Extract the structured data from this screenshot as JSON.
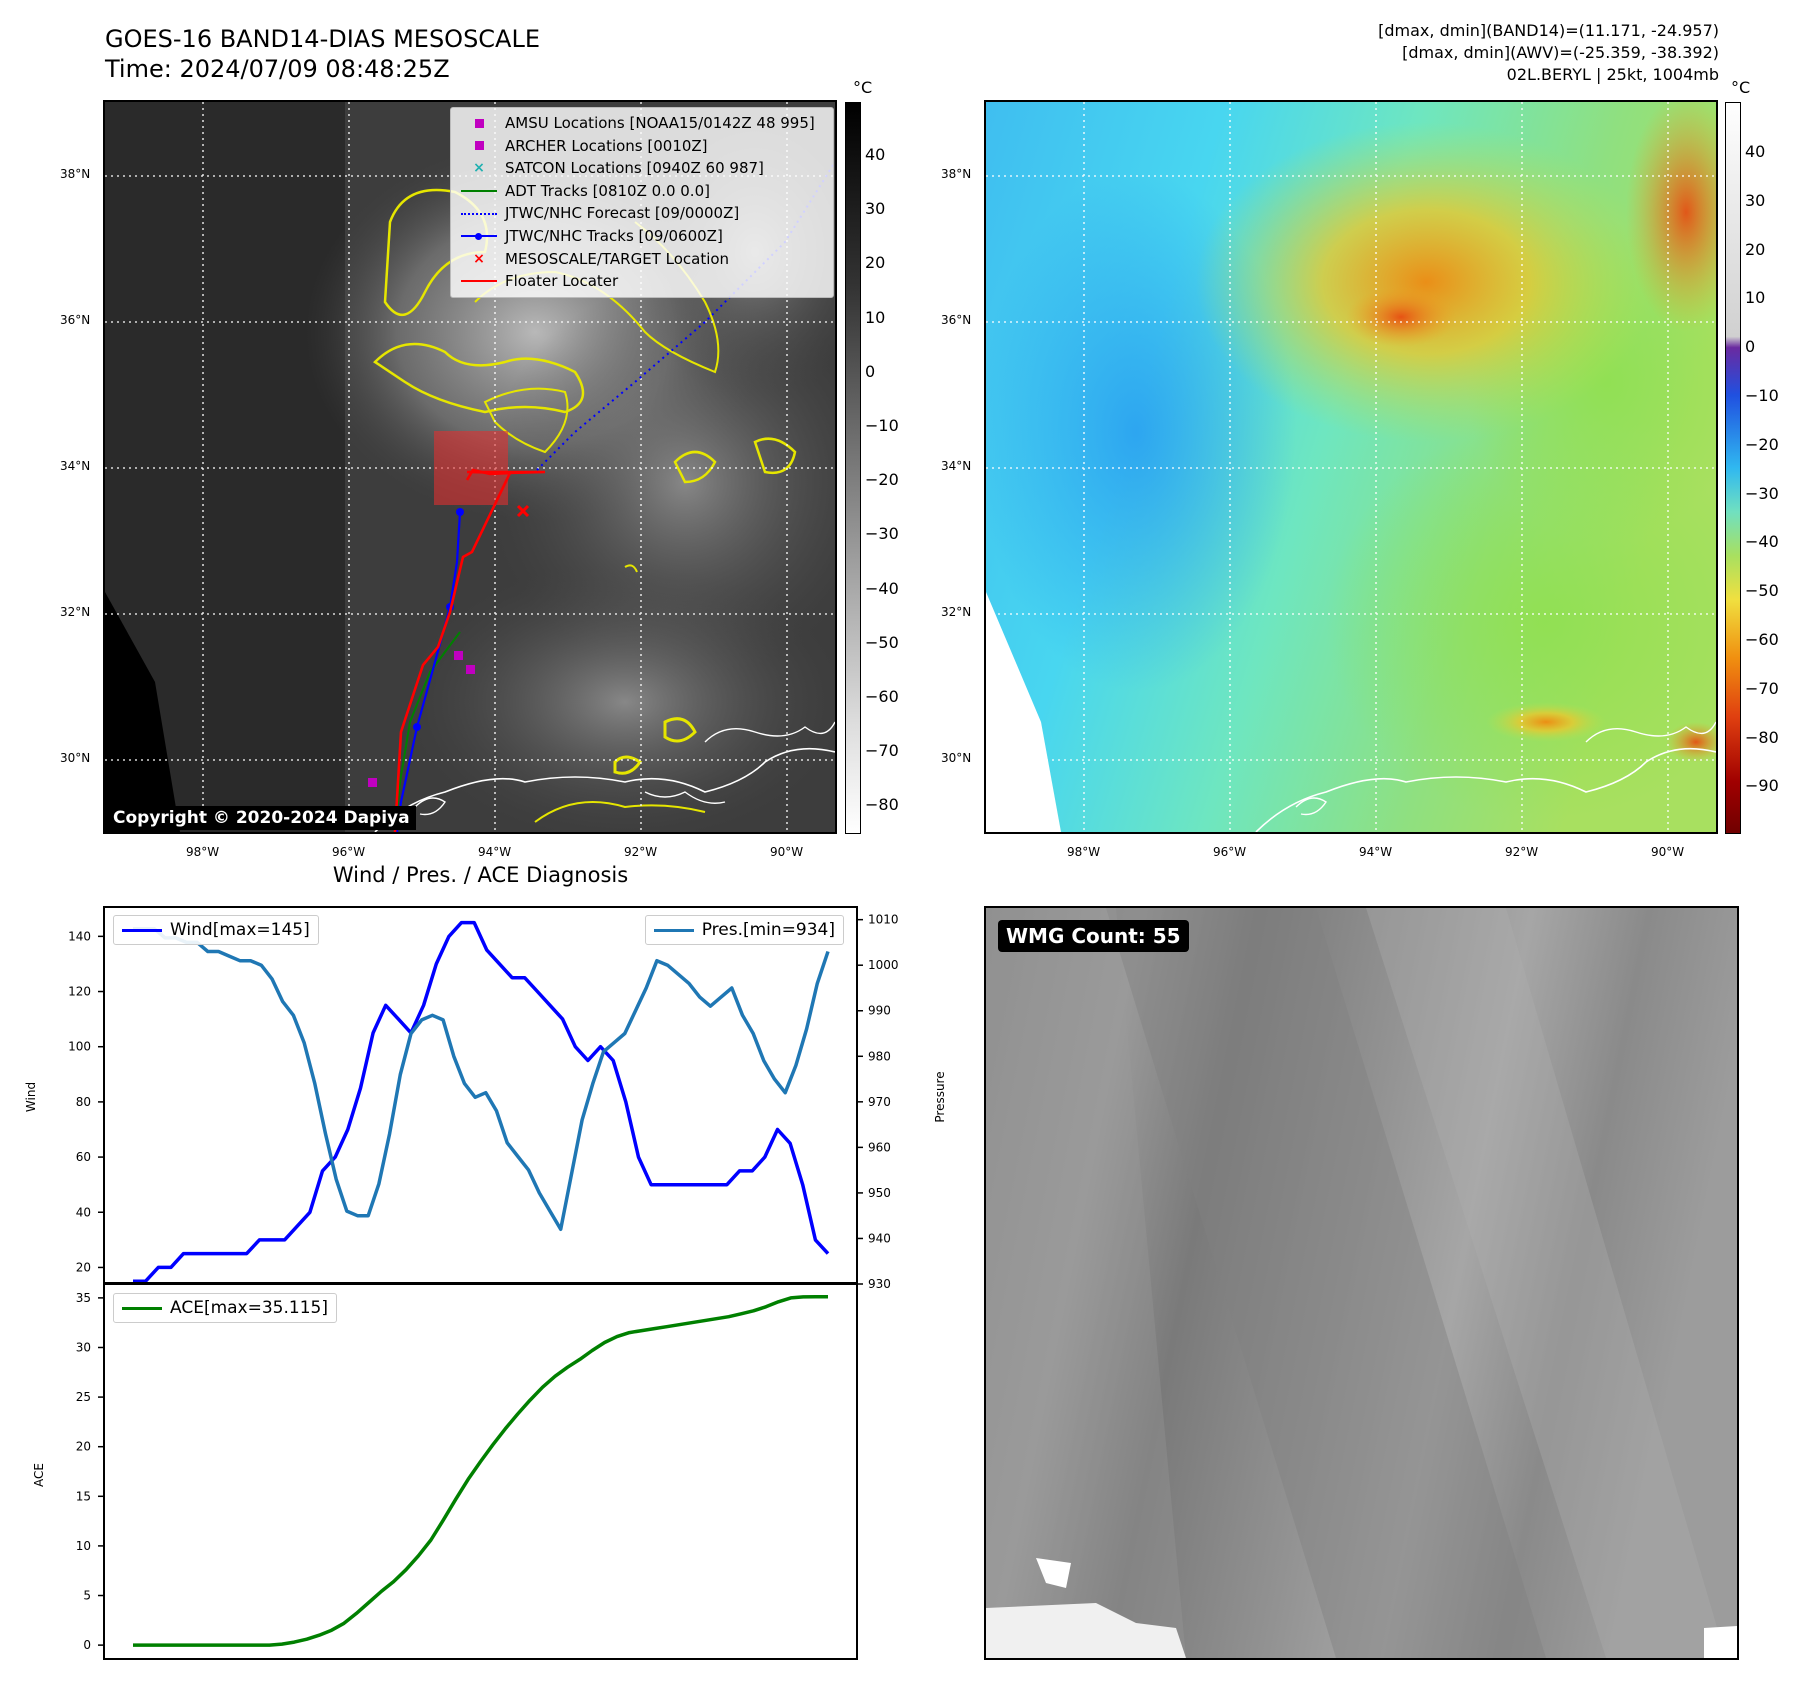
{
  "header": {
    "title_line1": "GOES-16 BAND14-DIAS MESOSCALE",
    "title_line2": "Time: 2024/07/09 08:48:25Z",
    "info_line1": "[dmax, dmin](BAND14)=(11.171, -24.957)",
    "info_line2": "[dmax, dmin](AWV)=(-25.359, -38.392)",
    "info_line3": "02L.BERYL | 25kt, 1004mb"
  },
  "map_left": {
    "colorbar_unit": "°C",
    "colorbar_ticks": [
      "40",
      "30",
      "20",
      "10",
      "0",
      "−10",
      "−20",
      "−30",
      "−40",
      "−50",
      "−60",
      "−70",
      "−80"
    ],
    "lat_labels": [
      "38°N",
      "36°N",
      "34°N",
      "32°N",
      "30°N"
    ],
    "lon_labels": [
      "98°W",
      "96°W",
      "94°W",
      "92°W",
      "90°W"
    ],
    "copyright": "Copyright © 2020-2024 Dapiya",
    "legend": [
      {
        "label": "AMSU Locations [NOAA15/0142Z 48 995]",
        "color": "#c000c0",
        "marker": "square"
      },
      {
        "label": "ARCHER Locations [0010Z]",
        "color": "#c000c0",
        "marker": "square"
      },
      {
        "label": "SATCON Locations [0940Z 60 987]",
        "color": "#20b0b0",
        "marker": "x"
      },
      {
        "label": "ADT Tracks [0810Z 0.0 0.0]",
        "color": "#008000",
        "marker": "line"
      },
      {
        "label": "JTWC/NHC Forecast [09/0000Z]",
        "color": "#0000ff",
        "marker": "dotted"
      },
      {
        "label": "JTWC/NHC Tracks [09/0600Z]",
        "color": "#0000ff",
        "marker": "line-dot"
      },
      {
        "label": "MESOSCALE/TARGET Location",
        "color": "#ff0000",
        "marker": "x"
      },
      {
        "label": "Floater Locater",
        "color": "#ff0000",
        "marker": "line"
      }
    ]
  },
  "map_right": {
    "colorbar_unit": "°C",
    "colorbar_ticks": [
      "40",
      "30",
      "20",
      "10",
      "0",
      "−10",
      "−20",
      "−30",
      "−40",
      "−50",
      "−60",
      "−70",
      "−80",
      "−90"
    ],
    "lat_labels": [
      "38°N",
      "36°N",
      "34°N",
      "32°N",
      "30°N"
    ],
    "lon_labels": [
      "98°W",
      "96°W",
      "94°W",
      "92°W",
      "90°W"
    ]
  },
  "diagnosis": {
    "title": "Wind / Pres. / ACE Diagnosis",
    "wind_label": "Wind",
    "pressure_label": "Pressure",
    "ace_label": "ACE",
    "wind_legend": "Wind[max=145]",
    "pres_legend": "Pres.[min=934]",
    "ace_legend": "ACE[max=35.115]",
    "wind_color": "#0000ff",
    "pres_color": "#1f77b4",
    "ace_color": "#008000"
  },
  "wmg": {
    "label": "WMG Count: 55"
  },
  "chart_data": [
    {
      "type": "line",
      "title": "Wind / Pres. / ACE Diagnosis",
      "ylabel": "Wind",
      "ylim": [
        14,
        151
      ],
      "yticks": [
        20,
        40,
        60,
        80,
        100,
        120,
        140
      ],
      "series": [
        {
          "name": "Wind[max=145]",
          "values": [
            15,
            15,
            20,
            20,
            25,
            25,
            25,
            25,
            25,
            25,
            30,
            30,
            30,
            35,
            40,
            55,
            60,
            70,
            85,
            105,
            115,
            110,
            105,
            115,
            130,
            140,
            145,
            145,
            135,
            130,
            125,
            125,
            120,
            115,
            110,
            100,
            95,
            100,
            95,
            80,
            60,
            50,
            50,
            50,
            50,
            50,
            50,
            50,
            55,
            55,
            60,
            70,
            65,
            50,
            30,
            25
          ]
        }
      ]
    },
    {
      "type": "line",
      "ylabel": "Pressure",
      "ylim": [
        930,
        1013
      ],
      "yticks": [
        930,
        940,
        950,
        960,
        970,
        980,
        990,
        1000,
        1010
      ],
      "series": [
        {
          "name": "Pres.[min=934]",
          "values": [
            1008,
            1008,
            1008,
            1006,
            1006,
            1005,
            1005,
            1003,
            1003,
            1002,
            1001,
            1001,
            1000,
            997,
            992,
            989,
            983,
            974,
            963,
            953,
            946,
            945,
            945,
            952,
            963,
            976,
            985,
            988,
            989,
            988,
            980,
            974,
            971,
            972,
            968,
            961,
            958,
            955,
            950,
            946,
            942,
            954,
            966,
            974,
            981,
            983,
            985,
            990,
            995,
            1001,
            1000,
            998,
            996,
            993,
            991,
            993,
            995,
            989,
            985,
            979,
            975,
            972,
            978,
            986,
            996,
            1003
          ]
        }
      ]
    },
    {
      "type": "line",
      "ylabel": "ACE",
      "ylim": [
        -1.5,
        36.5
      ],
      "yticks": [
        0,
        5,
        10,
        15,
        20,
        25,
        30,
        35
      ],
      "series": [
        {
          "name": "ACE[max=35.115]",
          "values": [
            0,
            0,
            0,
            0,
            0,
            0,
            0,
            0,
            0,
            0,
            0,
            0,
            0.1,
            0.3,
            0.6,
            1.0,
            1.5,
            2.2,
            3.2,
            4.3,
            5.4,
            6.4,
            7.6,
            9.0,
            10.6,
            12.6,
            14.7,
            16.7,
            18.5,
            20.2,
            21.8,
            23.3,
            24.7,
            26.0,
            27.1,
            28.0,
            28.8,
            29.7,
            30.5,
            31.1,
            31.5,
            31.7,
            31.9,
            32.1,
            32.3,
            32.5,
            32.7,
            32.9,
            33.1,
            33.4,
            33.7,
            34.1,
            34.6,
            35.0,
            35.1,
            35.115,
            35.115
          ]
        }
      ]
    }
  ]
}
